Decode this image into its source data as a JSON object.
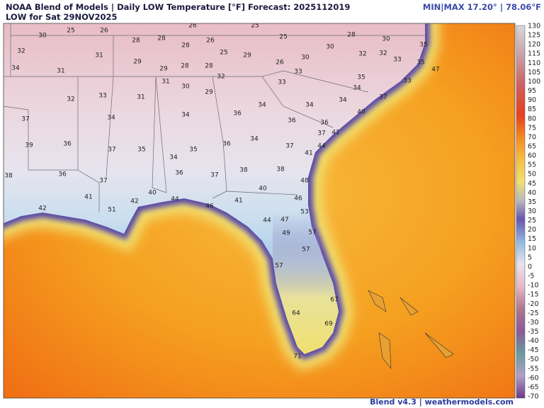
{
  "header": {
    "title": "NOAA Blend of Models | Daily LOW Temperature [°F] Forecast: 2025112019",
    "subtitle": "LOW for Sat 29NOV2025",
    "minmax": "MIN|MAX 17.20° | 78.06°F"
  },
  "stations": [
    30,
    25,
    26,
    26,
    25,
    32,
    31,
    28,
    28,
    28,
    26,
    25,
    29,
    25,
    26,
    30,
    30,
    28,
    30,
    32,
    32,
    33,
    35,
    35,
    34,
    31,
    29,
    29,
    28,
    28,
    32,
    33,
    35,
    33,
    47,
    31,
    30,
    29,
    33,
    34,
    37,
    32,
    33,
    31,
    34,
    34,
    34,
    40,
    37,
    34,
    34,
    36,
    36,
    36,
    37,
    41,
    39,
    36,
    37,
    35,
    35,
    34,
    36,
    34,
    37,
    44,
    41,
    38,
    36,
    36,
    37,
    38,
    38,
    37,
    40,
    48,
    41,
    40,
    44,
    41,
    46,
    42,
    51,
    42,
    46,
    53,
    44,
    47,
    49,
    57,
    57,
    57,
    67,
    64,
    69,
    71
  ],
  "colorbar": {
    "labels": [
      130,
      125,
      120,
      115,
      110,
      105,
      100,
      95,
      90,
      85,
      80,
      75,
      70,
      65,
      60,
      55,
      50,
      45,
      40,
      35,
      30,
      25,
      20,
      15,
      10,
      5,
      0,
      -5,
      -10,
      -15,
      -20,
      -25,
      -30,
      -35,
      -40,
      -45,
      -50,
      -55,
      -60,
      -65,
      -70
    ]
  },
  "footer": "Blend v4.3 | weathermodels.com"
}
